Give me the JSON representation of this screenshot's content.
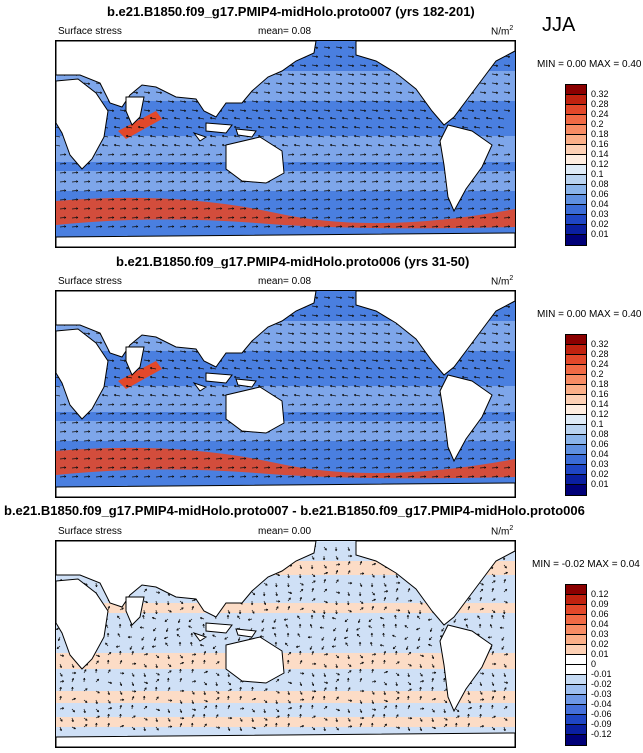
{
  "season": "JJA",
  "panels": [
    {
      "title": "b.e21.B1850.f09_g17.PMIP4-midHolo.proto007 (yrs 182-201)",
      "variable": "Surface stress",
      "mean": "mean=  0.08",
      "units": "N/m",
      "units_sup": "2",
      "minmax": "MIN =  0.00 MAX =  0.40",
      "colorbar_labels": [
        "0.32",
        "0.28",
        "0.24",
        "0.2",
        "0.18",
        "0.16",
        "0.14",
        "0.12",
        "0.1",
        "0.08",
        "0.06",
        "0.04",
        "0.03",
        "0.02",
        "0.01"
      ],
      "colorbar_colors": [
        "#8b0000",
        "#c0220f",
        "#e2482a",
        "#f06a45",
        "#f78c64",
        "#fbaf88",
        "#fdd0b4",
        "#feede0",
        "#deebf7",
        "#b9d3f0",
        "#8ab4ea",
        "#5f90e0",
        "#3b6cd6",
        "#1f46c4",
        "#0a1fa0",
        "#000078"
      ]
    },
    {
      "title": "b.e21.B1850.f09_g17.PMIP4-midHolo.proto006 (yrs 31-50)",
      "variable": "Surface stress",
      "mean": "mean=  0.08",
      "units": "N/m",
      "units_sup": "2",
      "minmax": "MIN =  0.00 MAX =  0.40",
      "colorbar_labels": [
        "0.32",
        "0.28",
        "0.24",
        "0.2",
        "0.18",
        "0.16",
        "0.14",
        "0.12",
        "0.1",
        "0.08",
        "0.06",
        "0.04",
        "0.03",
        "0.02",
        "0.01"
      ],
      "colorbar_colors": [
        "#8b0000",
        "#c0220f",
        "#e2482a",
        "#f06a45",
        "#f78c64",
        "#fbaf88",
        "#fdd0b4",
        "#feede0",
        "#deebf7",
        "#b9d3f0",
        "#8ab4ea",
        "#5f90e0",
        "#3b6cd6",
        "#1f46c4",
        "#0a1fa0",
        "#000078"
      ]
    },
    {
      "title": "b.e21.B1850.f09_g17.PMIP4-midHolo.proto007 - b.e21.B1850.f09_g17.PMIP4-midHolo.proto006",
      "variable": "Surface stress",
      "mean": "mean=  0.00",
      "units": "N/m",
      "units_sup": "2",
      "minmax": "MIN = -0.02 MAX =  0.04",
      "colorbar_labels": [
        "0.12",
        "0.09",
        "0.06",
        "0.04",
        "0.03",
        "0.02",
        "0.01",
        "0",
        "-0.01",
        "-0.02",
        "-0.03",
        "-0.04",
        "-0.06",
        "-0.09",
        "-0.12"
      ],
      "colorbar_colors": [
        "#8b0000",
        "#c0220f",
        "#e2482a",
        "#f06a45",
        "#f78c64",
        "#fbaf88",
        "#fdd0b4",
        "#ffffff",
        "#ffffff",
        "#c6dbf4",
        "#9ebff0",
        "#6e98e6",
        "#4570da",
        "#1f46c4",
        "#0a1fa0",
        "#000078"
      ]
    }
  ],
  "colors": {
    "land": "#ffffff",
    "ocean_abs": "#4a7fe0",
    "ocean_abs_light": "#a9c6f2",
    "ocean_abs_strong": "#e2482a",
    "ocean_diff_neg": "#cfe0f6",
    "ocean_diff_pos": "#fcdcc6"
  }
}
